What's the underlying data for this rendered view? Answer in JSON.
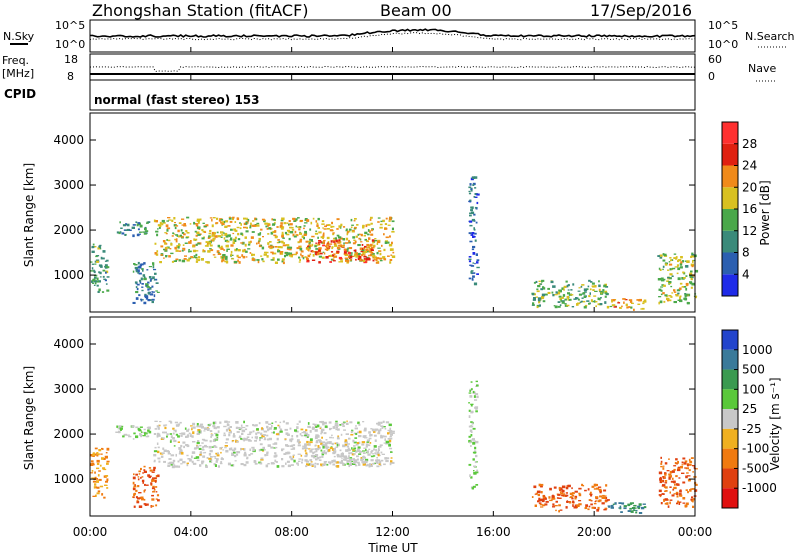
{
  "header": {
    "station": "Zhongshan Station (fitACF)",
    "beam": "Beam 00",
    "date": "17/Sep/2016"
  },
  "noise_panel": {
    "left_label": "N.Sky",
    "right_label": "N.Search",
    "left_ticks": [
      "10^5",
      "10^0"
    ],
    "right_ticks": [
      "10^5",
      "10^0"
    ]
  },
  "freq_panel": {
    "left_label_1": "Freq.",
    "left_label_2": "[MHz]",
    "right_label": "Nave",
    "left_ticks": [
      "18",
      "8"
    ],
    "right_ticks": [
      "60",
      "0"
    ]
  },
  "cpid_panel": {
    "label": "CPID",
    "text": "normal (fast stereo) 153"
  },
  "time_axis": {
    "label": "Time UT",
    "ticks": [
      "00:00",
      "04:00",
      "08:00",
      "12:00",
      "16:00",
      "20:00",
      "00:00"
    ]
  },
  "range_axis": {
    "label": "Slant Range [km]",
    "ticks": [
      "1000",
      "2000",
      "3000",
      "4000"
    ]
  },
  "power_scale": {
    "label": "Power [dB]",
    "ticks": [
      "4",
      "8",
      "12",
      "16",
      "20",
      "24",
      "28"
    ],
    "colors": [
      "#1f2be8",
      "#2b5fb0",
      "#3a8a7a",
      "#4aa84a",
      "#d8c020",
      "#f08a1a",
      "#e02010",
      "#ff3030"
    ]
  },
  "velocity_scale": {
    "label": "Velocity [m s⁻¹]",
    "ticks": [
      "1000",
      "500",
      "100",
      "25",
      "-25",
      "-100",
      "-500",
      "-1000"
    ],
    "colors": [
      "#2244cc",
      "#3a7a9a",
      "#3a9a50",
      "#5ac83a",
      "#c8c8c8",
      "#f0b020",
      "#f07a10",
      "#e04010",
      "#e01010"
    ]
  },
  "chart_data": {
    "type": "heatmap",
    "x_range_hours": [
      0,
      24
    ],
    "y_range_km": [
      180,
      4600
    ],
    "panels": [
      "power",
      "velocity"
    ],
    "echo_regions": [
      {
        "start": "00:00",
        "end": "00:40",
        "range_km": [
          600,
          1700
        ],
        "power_db": 12,
        "velocity": -100
      },
      {
        "start": "01:00",
        "end": "02:20",
        "range_km": [
          1900,
          2200
        ],
        "power_db": 10,
        "velocity": 25
      },
      {
        "start": "01:40",
        "end": "02:40",
        "range_km": [
          400,
          1300
        ],
        "power_db": 10,
        "velocity": -500
      },
      {
        "start": "02:30",
        "end": "12:00",
        "range_km": [
          1300,
          2300
        ],
        "power_db": 18,
        "velocity": 0
      },
      {
        "start": "08:30",
        "end": "11:30",
        "range_km": [
          1300,
          1800
        ],
        "power_db": 24,
        "velocity": 0
      },
      {
        "start": "15:00",
        "end": "15:20",
        "range_km": [
          800,
          3200
        ],
        "power_db": 6,
        "velocity": 25
      },
      {
        "start": "17:30",
        "end": "20:30",
        "range_km": [
          300,
          900
        ],
        "power_db": 14,
        "velocity": -500
      },
      {
        "start": "20:30",
        "end": "22:00",
        "range_km": [
          250,
          500
        ],
        "power_db": 20,
        "velocity": 500
      },
      {
        "start": "22:30",
        "end": "24:00",
        "range_km": [
          400,
          1500
        ],
        "power_db": 16,
        "velocity": -500
      }
    ]
  }
}
